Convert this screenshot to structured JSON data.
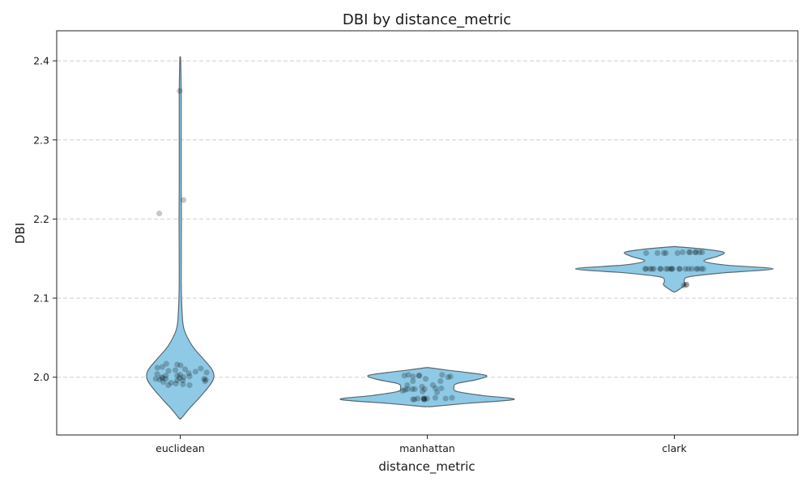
{
  "chart_data": {
    "type": "violin",
    "title": "DBI by distance_metric",
    "xlabel": "distance_metric",
    "ylabel": "DBI",
    "ylim": [
      1.927,
      2.438
    ],
    "yticks": [
      "2.0",
      "2.1",
      "2.2",
      "2.3",
      "2.4"
    ],
    "grid": true,
    "categories": [
      "euclidean",
      "manhattan",
      "clark"
    ],
    "violin_color": "#8ecae6",
    "point_color": "#000000",
    "distributions": [
      {
        "category": "euclidean",
        "y_min": 1.948,
        "y_max": 2.402,
        "profile": [
          [
            1.948,
            0.01
          ],
          [
            1.96,
            0.09
          ],
          [
            1.975,
            0.2
          ],
          [
            1.99,
            0.3
          ],
          [
            2.0,
            0.34
          ],
          [
            2.01,
            0.32
          ],
          [
            2.025,
            0.22
          ],
          [
            2.04,
            0.12
          ],
          [
            2.06,
            0.04
          ],
          [
            2.08,
            0.02
          ],
          [
            2.12,
            0.01
          ],
          [
            2.2,
            0.012
          ],
          [
            2.24,
            0.01
          ],
          [
            2.3,
            0.01
          ],
          [
            2.36,
            0.01
          ],
          [
            2.402,
            0.004
          ]
        ],
        "points": [
          2.362,
          2.224,
          2.207,
          2.017,
          2.016,
          2.015,
          2.012,
          2.011,
          2.01,
          2.009,
          2.008,
          2.007,
          2.005,
          2.004,
          2.003,
          2.002,
          2.001,
          2.0,
          2.0,
          1.999,
          1.999,
          1.998,
          1.998,
          1.997,
          1.997,
          1.996,
          1.995,
          1.994,
          1.992,
          1.991,
          1.99,
          1.99,
          2.013,
          2.006,
          2.002,
          1.998,
          1.996,
          1.993
        ]
      },
      {
        "category": "manhattan",
        "y_min": 1.963,
        "y_max": 2.012,
        "profile": [
          [
            1.963,
            0.05
          ],
          [
            1.967,
            0.4
          ],
          [
            1.972,
            0.88
          ],
          [
            1.977,
            0.55
          ],
          [
            1.982,
            0.3
          ],
          [
            1.987,
            0.27
          ],
          [
            1.992,
            0.3
          ],
          [
            1.997,
            0.5
          ],
          [
            2.002,
            0.6
          ],
          [
            2.006,
            0.4
          ],
          [
            2.009,
            0.2
          ],
          [
            2.012,
            0.02
          ]
        ],
        "points": [
          2.003,
          2.003,
          2.002,
          2.002,
          2.002,
          2.001,
          2.001,
          2.0,
          1.998,
          1.995,
          1.99,
          1.988,
          1.986,
          1.986,
          1.985,
          1.985,
          1.985,
          1.984,
          1.983,
          1.982,
          1.981,
          1.974,
          1.974,
          1.973,
          1.973,
          1.973,
          1.973,
          1.973,
          1.972,
          1.972,
          1.972,
          1.972,
          1.995,
          1.99,
          1.985
        ]
      },
      {
        "category": "clark",
        "y_min": 2.108,
        "y_max": 2.165,
        "profile": [
          [
            2.108,
            0.01
          ],
          [
            2.112,
            0.06
          ],
          [
            2.117,
            0.11
          ],
          [
            2.122,
            0.1
          ],
          [
            2.127,
            0.15
          ],
          [
            2.132,
            0.5
          ],
          [
            2.137,
            1.0
          ],
          [
            2.142,
            0.5
          ],
          [
            2.147,
            0.3
          ],
          [
            2.153,
            0.44
          ],
          [
            2.158,
            0.5
          ],
          [
            2.162,
            0.3
          ],
          [
            2.165,
            0.02
          ]
        ],
        "points": [
          2.158,
          2.158,
          2.158,
          2.158,
          2.158,
          2.158,
          2.158,
          2.157,
          2.157,
          2.157,
          2.157,
          2.157,
          2.137,
          2.137,
          2.137,
          2.137,
          2.137,
          2.137,
          2.137,
          2.137,
          2.137,
          2.137,
          2.137,
          2.137,
          2.137,
          2.137,
          2.137,
          2.137,
          2.137,
          2.137,
          2.137,
          2.137,
          2.137,
          2.117,
          2.117,
          2.116
        ]
      }
    ]
  }
}
